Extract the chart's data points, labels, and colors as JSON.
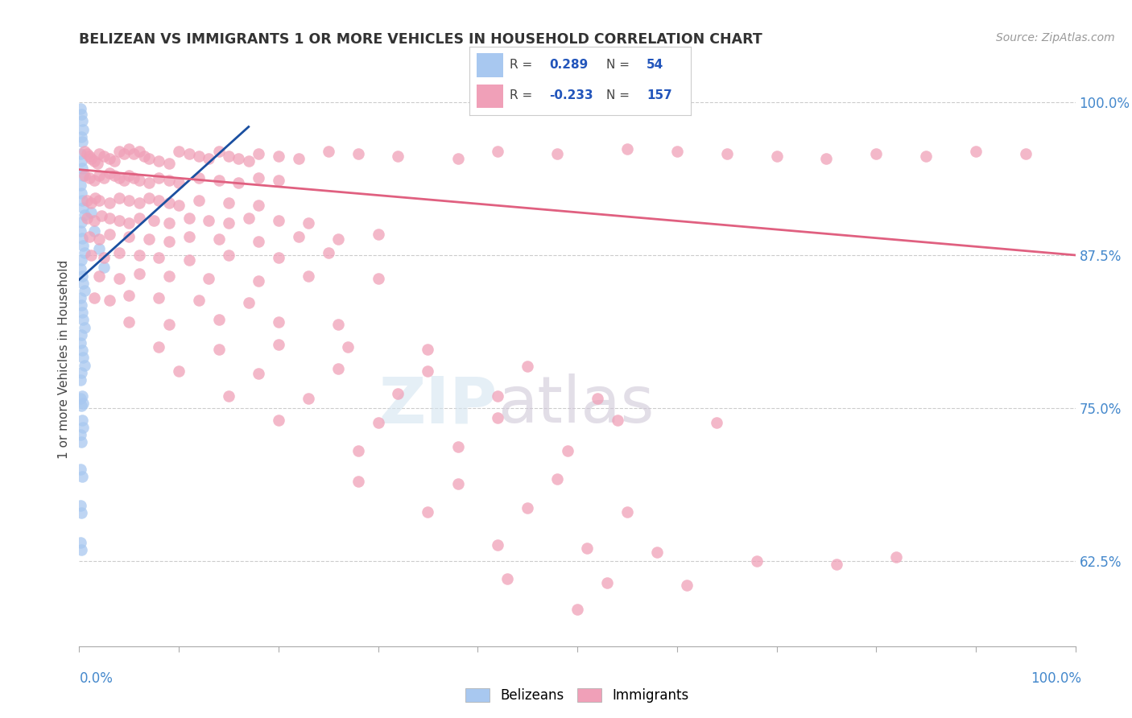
{
  "title": "BELIZEAN VS IMMIGRANTS 1 OR MORE VEHICLES IN HOUSEHOLD CORRELATION CHART",
  "source": "Source: ZipAtlas.com",
  "ylabel": "1 or more Vehicles in Household",
  "yticks": [
    0.625,
    0.75,
    0.875,
    1.0
  ],
  "ytick_labels": [
    "62.5%",
    "75.0%",
    "87.5%",
    "100.0%"
  ],
  "xmin": 0.0,
  "xmax": 1.0,
  "ymin": 0.555,
  "ymax": 1.025,
  "blue_color": "#a8c8f0",
  "pink_color": "#f0a0b8",
  "blue_line_color": "#1a4fa0",
  "pink_line_color": "#e06080",
  "blue_dots": [
    [
      0.001,
      0.995
    ],
    [
      0.002,
      0.99
    ],
    [
      0.003,
      0.985
    ],
    [
      0.004,
      0.978
    ],
    [
      0.002,
      0.972
    ],
    [
      0.003,
      0.968
    ],
    [
      0.001,
      0.958
    ],
    [
      0.002,
      0.952
    ],
    [
      0.003,
      0.946
    ],
    [
      0.004,
      0.94
    ],
    [
      0.001,
      0.932
    ],
    [
      0.002,
      0.926
    ],
    [
      0.003,
      0.92
    ],
    [
      0.004,
      0.914
    ],
    [
      0.005,
      0.908
    ],
    [
      0.002,
      0.902
    ],
    [
      0.001,
      0.895
    ],
    [
      0.003,
      0.889
    ],
    [
      0.004,
      0.883
    ],
    [
      0.005,
      0.877
    ],
    [
      0.002,
      0.871
    ],
    [
      0.001,
      0.864
    ],
    [
      0.003,
      0.858
    ],
    [
      0.004,
      0.852
    ],
    [
      0.005,
      0.846
    ],
    [
      0.001,
      0.84
    ],
    [
      0.002,
      0.834
    ],
    [
      0.003,
      0.828
    ],
    [
      0.004,
      0.822
    ],
    [
      0.005,
      0.816
    ],
    [
      0.002,
      0.81
    ],
    [
      0.001,
      0.803
    ],
    [
      0.003,
      0.797
    ],
    [
      0.004,
      0.791
    ],
    [
      0.005,
      0.785
    ],
    [
      0.002,
      0.779
    ],
    [
      0.001,
      0.773
    ],
    [
      0.003,
      0.76
    ],
    [
      0.004,
      0.754
    ],
    [
      0.012,
      0.91
    ],
    [
      0.015,
      0.895
    ],
    [
      0.02,
      0.88
    ],
    [
      0.025,
      0.865
    ],
    [
      0.003,
      0.74
    ],
    [
      0.004,
      0.734
    ],
    [
      0.001,
      0.728
    ],
    [
      0.002,
      0.722
    ],
    [
      0.001,
      0.7
    ],
    [
      0.003,
      0.694
    ],
    [
      0.001,
      0.758
    ],
    [
      0.002,
      0.752
    ],
    [
      0.001,
      0.67
    ],
    [
      0.002,
      0.664
    ],
    [
      0.001,
      0.64
    ],
    [
      0.002,
      0.634
    ]
  ],
  "pink_dots": [
    [
      0.005,
      0.96
    ],
    [
      0.008,
      0.958
    ],
    [
      0.01,
      0.956
    ],
    [
      0.012,
      0.954
    ],
    [
      0.015,
      0.952
    ],
    [
      0.018,
      0.95
    ],
    [
      0.02,
      0.958
    ],
    [
      0.025,
      0.956
    ],
    [
      0.03,
      0.954
    ],
    [
      0.035,
      0.952
    ],
    [
      0.04,
      0.96
    ],
    [
      0.045,
      0.958
    ],
    [
      0.05,
      0.962
    ],
    [
      0.055,
      0.958
    ],
    [
      0.06,
      0.96
    ],
    [
      0.065,
      0.956
    ],
    [
      0.07,
      0.954
    ],
    [
      0.08,
      0.952
    ],
    [
      0.09,
      0.95
    ],
    [
      0.1,
      0.96
    ],
    [
      0.11,
      0.958
    ],
    [
      0.12,
      0.956
    ],
    [
      0.13,
      0.954
    ],
    [
      0.14,
      0.96
    ],
    [
      0.15,
      0.956
    ],
    [
      0.16,
      0.954
    ],
    [
      0.17,
      0.952
    ],
    [
      0.18,
      0.958
    ],
    [
      0.2,
      0.956
    ],
    [
      0.22,
      0.954
    ],
    [
      0.25,
      0.96
    ],
    [
      0.28,
      0.958
    ],
    [
      0.32,
      0.956
    ],
    [
      0.38,
      0.954
    ],
    [
      0.42,
      0.96
    ],
    [
      0.48,
      0.958
    ],
    [
      0.55,
      0.962
    ],
    [
      0.6,
      0.96
    ],
    [
      0.65,
      0.958
    ],
    [
      0.7,
      0.956
    ],
    [
      0.75,
      0.954
    ],
    [
      0.8,
      0.958
    ],
    [
      0.85,
      0.956
    ],
    [
      0.9,
      0.96
    ],
    [
      0.95,
      0.958
    ],
    [
      0.005,
      0.94
    ],
    [
      0.01,
      0.938
    ],
    [
      0.015,
      0.936
    ],
    [
      0.02,
      0.94
    ],
    [
      0.025,
      0.938
    ],
    [
      0.03,
      0.942
    ],
    [
      0.035,
      0.94
    ],
    [
      0.04,
      0.938
    ],
    [
      0.045,
      0.936
    ],
    [
      0.05,
      0.94
    ],
    [
      0.055,
      0.938
    ],
    [
      0.06,
      0.936
    ],
    [
      0.07,
      0.934
    ],
    [
      0.08,
      0.938
    ],
    [
      0.09,
      0.936
    ],
    [
      0.1,
      0.934
    ],
    [
      0.12,
      0.938
    ],
    [
      0.14,
      0.936
    ],
    [
      0.16,
      0.934
    ],
    [
      0.18,
      0.938
    ],
    [
      0.2,
      0.936
    ],
    [
      0.008,
      0.92
    ],
    [
      0.012,
      0.918
    ],
    [
      0.016,
      0.922
    ],
    [
      0.02,
      0.92
    ],
    [
      0.03,
      0.918
    ],
    [
      0.04,
      0.922
    ],
    [
      0.05,
      0.92
    ],
    [
      0.06,
      0.918
    ],
    [
      0.07,
      0.922
    ],
    [
      0.08,
      0.92
    ],
    [
      0.09,
      0.918
    ],
    [
      0.1,
      0.916
    ],
    [
      0.12,
      0.92
    ],
    [
      0.15,
      0.918
    ],
    [
      0.18,
      0.916
    ],
    [
      0.008,
      0.905
    ],
    [
      0.015,
      0.903
    ],
    [
      0.022,
      0.907
    ],
    [
      0.03,
      0.905
    ],
    [
      0.04,
      0.903
    ],
    [
      0.05,
      0.901
    ],
    [
      0.06,
      0.905
    ],
    [
      0.075,
      0.903
    ],
    [
      0.09,
      0.901
    ],
    [
      0.11,
      0.905
    ],
    [
      0.13,
      0.903
    ],
    [
      0.15,
      0.901
    ],
    [
      0.17,
      0.905
    ],
    [
      0.2,
      0.903
    ],
    [
      0.23,
      0.901
    ],
    [
      0.01,
      0.89
    ],
    [
      0.02,
      0.888
    ],
    [
      0.03,
      0.892
    ],
    [
      0.05,
      0.89
    ],
    [
      0.07,
      0.888
    ],
    [
      0.09,
      0.886
    ],
    [
      0.11,
      0.89
    ],
    [
      0.14,
      0.888
    ],
    [
      0.18,
      0.886
    ],
    [
      0.22,
      0.89
    ],
    [
      0.26,
      0.888
    ],
    [
      0.3,
      0.892
    ],
    [
      0.012,
      0.875
    ],
    [
      0.025,
      0.873
    ],
    [
      0.04,
      0.877
    ],
    [
      0.06,
      0.875
    ],
    [
      0.08,
      0.873
    ],
    [
      0.11,
      0.871
    ],
    [
      0.15,
      0.875
    ],
    [
      0.2,
      0.873
    ],
    [
      0.25,
      0.877
    ],
    [
      0.02,
      0.858
    ],
    [
      0.04,
      0.856
    ],
    [
      0.06,
      0.86
    ],
    [
      0.09,
      0.858
    ],
    [
      0.13,
      0.856
    ],
    [
      0.18,
      0.854
    ],
    [
      0.23,
      0.858
    ],
    [
      0.3,
      0.856
    ],
    [
      0.015,
      0.84
    ],
    [
      0.03,
      0.838
    ],
    [
      0.05,
      0.842
    ],
    [
      0.08,
      0.84
    ],
    [
      0.12,
      0.838
    ],
    [
      0.17,
      0.836
    ],
    [
      0.05,
      0.82
    ],
    [
      0.09,
      0.818
    ],
    [
      0.14,
      0.822
    ],
    [
      0.2,
      0.82
    ],
    [
      0.26,
      0.818
    ],
    [
      0.08,
      0.8
    ],
    [
      0.14,
      0.798
    ],
    [
      0.2,
      0.802
    ],
    [
      0.27,
      0.8
    ],
    [
      0.35,
      0.798
    ],
    [
      0.1,
      0.78
    ],
    [
      0.18,
      0.778
    ],
    [
      0.26,
      0.782
    ],
    [
      0.35,
      0.78
    ],
    [
      0.45,
      0.784
    ],
    [
      0.15,
      0.76
    ],
    [
      0.23,
      0.758
    ],
    [
      0.32,
      0.762
    ],
    [
      0.42,
      0.76
    ],
    [
      0.52,
      0.758
    ],
    [
      0.2,
      0.74
    ],
    [
      0.3,
      0.738
    ],
    [
      0.42,
      0.742
    ],
    [
      0.54,
      0.74
    ],
    [
      0.64,
      0.738
    ],
    [
      0.28,
      0.715
    ],
    [
      0.38,
      0.718
    ],
    [
      0.49,
      0.715
    ],
    [
      0.28,
      0.69
    ],
    [
      0.38,
      0.688
    ],
    [
      0.48,
      0.692
    ],
    [
      0.35,
      0.665
    ],
    [
      0.45,
      0.668
    ],
    [
      0.55,
      0.665
    ],
    [
      0.42,
      0.638
    ],
    [
      0.51,
      0.635
    ],
    [
      0.58,
      0.632
    ],
    [
      0.68,
      0.625
    ],
    [
      0.76,
      0.622
    ],
    [
      0.43,
      0.61
    ],
    [
      0.53,
      0.607
    ],
    [
      0.61,
      0.605
    ],
    [
      0.82,
      0.628
    ],
    [
      0.5,
      0.585
    ]
  ],
  "blue_trend_x": [
    0.0,
    0.17
  ],
  "blue_trend_y": [
    0.855,
    0.98
  ],
  "pink_trend_x": [
    0.0,
    1.0
  ],
  "pink_trend_y": [
    0.945,
    0.875
  ]
}
